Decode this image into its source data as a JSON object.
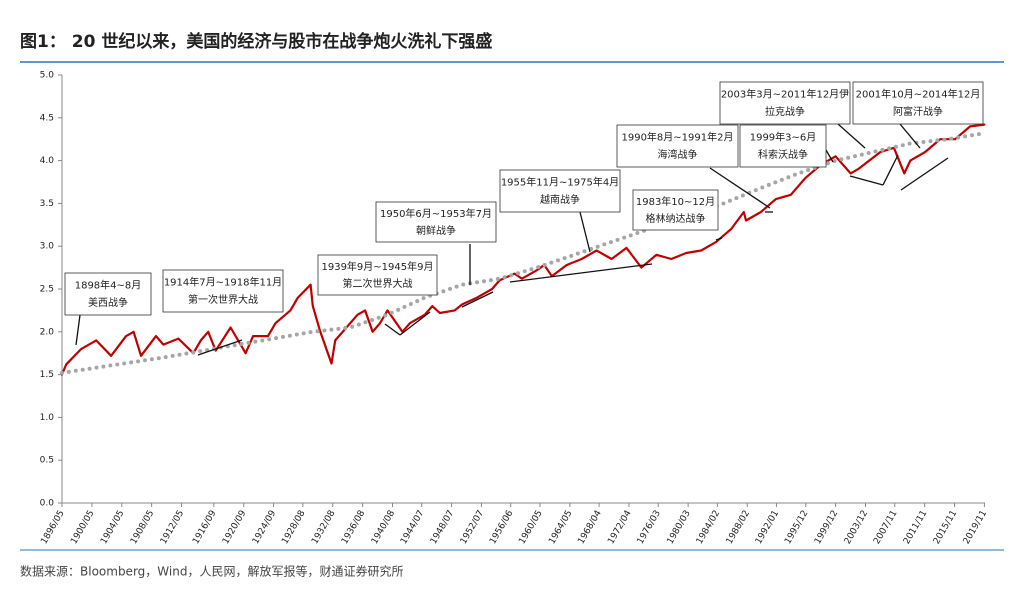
{
  "chart_data": {
    "type": "line",
    "title": "图1： 20 世纪以来，美国的经济与股市在战争炮火洗礼下强盛",
    "source": "数据来源：Bloomberg，Wind，人民网，解放军报等，财通证券研究所",
    "xlim": [
      1896.42,
      2020.0
    ],
    "xticks": [
      {
        "value": 1896.42,
        "label": "1896/05"
      },
      {
        "value": 1900.42,
        "label": "1900/05"
      },
      {
        "value": 1904.42,
        "label": "1904/05"
      },
      {
        "value": 1908.42,
        "label": "1908/05"
      },
      {
        "value": 1912.42,
        "label": "1912/05"
      },
      {
        "value": 1916.75,
        "label": "1916/09"
      },
      {
        "value": 1920.75,
        "label": "1920/09"
      },
      {
        "value": 1924.75,
        "label": "1924/09"
      },
      {
        "value": 1928.67,
        "label": "1928/08"
      },
      {
        "value": 1932.67,
        "label": "1932/08"
      },
      {
        "value": 1936.67,
        "label": "1936/08"
      },
      {
        "value": 1940.67,
        "label": "1940/08"
      },
      {
        "value": 1944.58,
        "label": "1944/07"
      },
      {
        "value": 1948.58,
        "label": "1948/07"
      },
      {
        "value": 1952.58,
        "label": "1952/07"
      },
      {
        "value": 1956.5,
        "label": "1956/06"
      },
      {
        "value": 1960.42,
        "label": "1960/05"
      },
      {
        "value": 1964.42,
        "label": "1964/05"
      },
      {
        "value": 1968.33,
        "label": "1968/04"
      },
      {
        "value": 1972.33,
        "label": "1972/04"
      },
      {
        "value": 1976.25,
        "label": "1976/03"
      },
      {
        "value": 1980.25,
        "label": "1980/03"
      },
      {
        "value": 1984.17,
        "label": "1984/02"
      },
      {
        "value": 1988.17,
        "label": "1988/02"
      },
      {
        "value": 1992.08,
        "label": "1992/01"
      },
      {
        "value": 1996.0,
        "label": "1995/12"
      },
      {
        "value": 2000.0,
        "label": "1999/12"
      },
      {
        "value": 2004.0,
        "label": "2003/12"
      },
      {
        "value": 2007.92,
        "label": "2007/11"
      },
      {
        "value": 2011.92,
        "label": "2011/11"
      },
      {
        "value": 2015.92,
        "label": "2015/11"
      },
      {
        "value": 2019.92,
        "label": "2019/11"
      }
    ],
    "ylim": [
      0,
      5
    ],
    "yticks": [
      {
        "value": 0,
        "label": "0.0"
      },
      0.5,
      {
        "value": 1,
        "label": "1.0"
      },
      1.5,
      {
        "value": 2,
        "label": "2.0"
      },
      2.5,
      {
        "value": 3,
        "label": "3.0"
      },
      3.5,
      {
        "value": 4,
        "label": "4.0"
      },
      4.5,
      {
        "value": 5,
        "label": "5.0"
      }
    ],
    "series": [
      {
        "color": "#c00000",
        "style": "solid",
        "x": [
          1896.4,
          1897,
          1899,
          1901,
          1903,
          1905,
          1906,
          1907,
          1909,
          1910,
          1912,
          1914,
          1915,
          1916,
          1917,
          1919,
          1921,
          1922,
          1924,
          1925,
          1927,
          1928,
          1929.7,
          1930,
          1931,
          1932.5,
          1933,
          1936,
          1937,
          1938,
          1939,
          1940,
          1942,
          1943,
          1945,
          1946,
          1947,
          1949,
          1950,
          1952,
          1954,
          1955,
          1957,
          1958,
          1960,
          1961,
          1962,
          1964,
          1966,
          1968,
          1970,
          1972,
          1974,
          1976,
          1978,
          1980,
          1982,
          1984,
          1986,
          1987.7,
          1988,
          1990,
          1992,
          1994,
          1996,
          1998,
          2000,
          2002,
          2003,
          2006,
          2007.8,
          2009.2,
          2010,
          2012,
          2014,
          2016,
          2018,
          2019.9
        ],
        "values": [
          1.5,
          1.62,
          1.8,
          1.9,
          1.72,
          1.95,
          2.0,
          1.72,
          1.95,
          1.85,
          1.92,
          1.75,
          1.9,
          2.0,
          1.78,
          2.05,
          1.75,
          1.95,
          1.95,
          2.1,
          2.25,
          2.4,
          2.55,
          2.3,
          2.0,
          1.63,
          1.9,
          2.2,
          2.25,
          2.0,
          2.1,
          2.25,
          2.0,
          2.1,
          2.2,
          2.3,
          2.22,
          2.25,
          2.32,
          2.4,
          2.5,
          2.6,
          2.68,
          2.62,
          2.72,
          2.78,
          2.65,
          2.78,
          2.85,
          2.95,
          2.85,
          2.98,
          2.75,
          2.9,
          2.85,
          2.92,
          2.95,
          3.05,
          3.2,
          3.4,
          3.3,
          3.4,
          3.55,
          3.6,
          3.8,
          3.95,
          4.05,
          3.85,
          3.9,
          4.1,
          4.15,
          3.85,
          4.0,
          4.1,
          4.25,
          4.25,
          4.4,
          4.42
        ]
      },
      {
        "color": "#a6a6a6",
        "style": "dotted",
        "x": [
          1896.4,
          1910,
          1920,
          1930,
          1935,
          1940,
          1945,
          1950,
          1955,
          1960,
          1965,
          1970,
          1975,
          1980,
          1985,
          1990,
          1995,
          2000,
          2005,
          2010,
          2015,
          2019.9
        ],
        "values": [
          1.52,
          1.7,
          1.85,
          2.0,
          2.05,
          2.2,
          2.4,
          2.55,
          2.62,
          2.75,
          2.9,
          3.05,
          3.2,
          3.35,
          3.5,
          3.68,
          3.85,
          4.0,
          4.1,
          4.2,
          4.25,
          4.32
        ]
      }
    ],
    "annotations": [
      {
        "lines": [
          "1898年4~8月",
          "美西战争"
        ]
      },
      {
        "lines": [
          "1914年7月~1918年11月",
          "第一次世界大战"
        ]
      },
      {
        "lines": [
          "1939年9月~1945年9月",
          "第二次世界大战"
        ]
      },
      {
        "lines": [
          "1950年6月~1953年7月",
          "朝鲜战争"
        ]
      },
      {
        "lines": [
          "1955年11月~1975年4月",
          "越南战争"
        ]
      },
      {
        "lines": [
          "1983年10~12月",
          "格林纳达战争"
        ]
      },
      {
        "lines": [
          "1990年8月~1991年2月",
          "海湾战争"
        ]
      },
      {
        "lines": [
          "1999年3~6月",
          "科索沃战争"
        ]
      },
      {
        "lines": [
          "2003年3月~2011年12月伊",
          "拉克战争"
        ]
      },
      {
        "lines": [
          "2001年10月~2014年12月",
          "阿富汗战争"
        ]
      }
    ]
  }
}
